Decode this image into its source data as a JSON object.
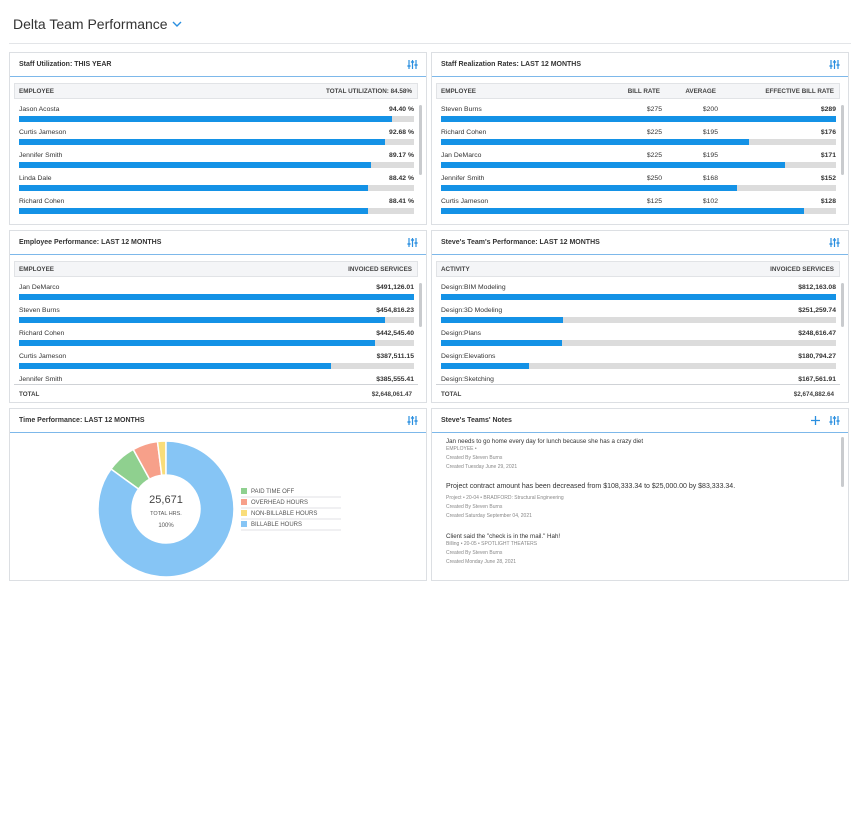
{
  "header": {
    "title": "Delta Team Performance"
  },
  "staff_utilization": {
    "title": "Staff Utilization: THIS YEAR",
    "columns": [
      "EMPLOYEE",
      "TOTAL UTILIZATION: 84.58%"
    ],
    "xlim": [
      0,
      100
    ],
    "rows": [
      {
        "name": "Jason Acosta",
        "value": 94.4,
        "label": "94.40 %"
      },
      {
        "name": "Curtis Jameson",
        "value": 92.68,
        "label": "92.68 %"
      },
      {
        "name": "Jennifer Smith",
        "value": 89.17,
        "label": "89.17 %"
      },
      {
        "name": "Linda Dale",
        "value": 88.42,
        "label": "88.42 %"
      },
      {
        "name": "Richard Cohen",
        "value": 88.41,
        "label": "88.41 %"
      }
    ]
  },
  "staff_realization": {
    "title": "Staff Realization Rates: LAST 12 MONTHS",
    "columns": [
      "EMPLOYEE",
      "BILL RATE",
      "AVERAGE",
      "EFFECTIVE BILL RATE"
    ],
    "xlim": [
      0,
      100
    ],
    "rows": [
      {
        "name": "Steven Burns",
        "bill_rate": "$275",
        "average": "$200",
        "effective": "$289",
        "value": 100
      },
      {
        "name": "Richard Cohen",
        "bill_rate": "$225",
        "average": "$195",
        "effective": "$176",
        "value": 78
      },
      {
        "name": "Jan DeMarco",
        "bill_rate": "$225",
        "average": "$195",
        "effective": "$171",
        "value": 87
      },
      {
        "name": "Jennifer Smith",
        "bill_rate": "$250",
        "average": "$168",
        "effective": "$152",
        "value": 75
      },
      {
        "name": "Curtis Jameson",
        "bill_rate": "$125",
        "average": "$102",
        "effective": "$128",
        "value": 92
      }
    ]
  },
  "employee_performance": {
    "title": "Employee Performance: LAST 12 MONTHS",
    "columns": [
      "EMPLOYEE",
      "INVOICED SERVICES"
    ],
    "xlim": [
      0,
      491126.01
    ],
    "rows": [
      {
        "name": "Jan DeMarco",
        "value": 491126.01,
        "label": "$491,126.01"
      },
      {
        "name": "Steven Burns",
        "value": 454816.23,
        "label": "$454,816.23"
      },
      {
        "name": "Richard Cohen",
        "value": 442545.4,
        "label": "$442,545.40"
      },
      {
        "name": "Curtis Jameson",
        "value": 387511.15,
        "label": "$387,511.15"
      },
      {
        "name": "Jennifer Smith",
        "value": 385555.41,
        "label": "$385,555.41"
      }
    ],
    "total": {
      "label": "TOTAL",
      "value": "$2,648,061.47"
    }
  },
  "team_performance": {
    "title": "Steve's Team's Performance: LAST 12 MONTHS",
    "columns": [
      "ACTIVITY",
      "INVOICED SERVICES"
    ],
    "xlim": [
      0,
      812163.08
    ],
    "rows": [
      {
        "name": "Design:BIM Modeling",
        "value": 812163.08,
        "label": "$812,163.08"
      },
      {
        "name": "Design:3D Modeling",
        "value": 251259.74,
        "label": "$251,259.74"
      },
      {
        "name": "Design:Plans",
        "value": 248616.47,
        "label": "$248,616.47"
      },
      {
        "name": "Design:Elevations",
        "value": 180794.27,
        "label": "$180,794.27"
      },
      {
        "name": "Design:Sketching",
        "value": 167561.91,
        "label": "$167,561.91"
      }
    ],
    "total": {
      "label": "TOTAL",
      "value": "$2,674,882.64"
    }
  },
  "time_performance": {
    "title": "Time Performance: LAST 12 MONTHS",
    "total": "25,671",
    "total_label": "TOTAL HRS.",
    "percent": "100%",
    "segments": [
      {
        "name": "PAID TIME OFF",
        "value": 7,
        "color": "#8fd08f"
      },
      {
        "name": "OVERHEAD HOURS",
        "value": 6,
        "color": "#f7a08a"
      },
      {
        "name": "NON-BILLABLE HOURS",
        "value": 2,
        "color": "#f9dd7a"
      },
      {
        "name": "BILLABLE HOURS",
        "value": 85,
        "color": "#86c5f5"
      }
    ]
  },
  "notes": {
    "title": "Steve's Teams' Notes",
    "items": [
      {
        "text": "Jan needs to go home every day for lunch because she has a crazy diet",
        "meta": "EMPLOYEE •",
        "by": "Created By Steven Burns",
        "date": "Created Tuesday June 29, 2021"
      },
      {
        "text": "Project contract amount has been decreased from $108,333.34 to $25,000.00 by $83,333.34.",
        "meta": "Project • 20-04 • BRADFORD: Structural Engineering",
        "by": "Created By Steven Burns",
        "date": "Created Saturday September 04, 2021"
      },
      {
        "text": "Client said the \"check is in the mail.\" Hah!",
        "meta": "Billing • 20-05 • SPOTLIGHT THEATERS",
        "by": "Created By Steven Burns",
        "date": "Created Monday June 28, 2021"
      }
    ]
  }
}
